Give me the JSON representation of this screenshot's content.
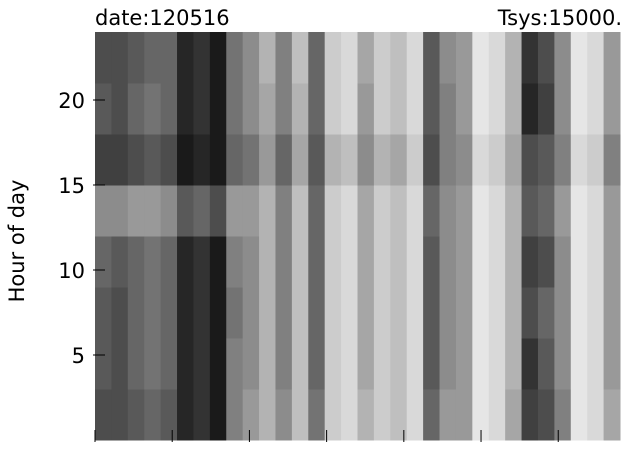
{
  "chart_data": {
    "type": "heatmap",
    "title_left": "date:120516",
    "title_right": "Tsys:15000.",
    "ylabel": "Hour of day",
    "xlim": [
      0,
      6.8
    ],
    "xticks": [
      0,
      1,
      2,
      3,
      4,
      5,
      6
    ],
    "ylim": [
      0,
      24
    ],
    "yticks": [
      5,
      10,
      15,
      20
    ],
    "z": [
      [
        0.3,
        0.3,
        0.35,
        0.4,
        0.35,
        0.15,
        0.2,
        0.1,
        0.5,
        0.6,
        0.7,
        0.55,
        0.75,
        0.45,
        0.8,
        0.85,
        0.7,
        0.8,
        0.75,
        0.85,
        0.4,
        0.6,
        0.6,
        0.9,
        0.85,
        0.65,
        0.25,
        0.3,
        0.5,
        0.9,
        0.85,
        0.65
      ],
      [
        0.35,
        0.3,
        0.4,
        0.45,
        0.4,
        0.15,
        0.2,
        0.1,
        0.5,
        0.55,
        0.7,
        0.5,
        0.75,
        0.4,
        0.8,
        0.85,
        0.65,
        0.8,
        0.75,
        0.85,
        0.35,
        0.55,
        0.6,
        0.9,
        0.85,
        0.7,
        0.2,
        0.35,
        0.55,
        0.9,
        0.85,
        0.6
      ],
      [
        0.35,
        0.3,
        0.4,
        0.45,
        0.4,
        0.15,
        0.2,
        0.1,
        0.45,
        0.55,
        0.7,
        0.5,
        0.75,
        0.4,
        0.8,
        0.85,
        0.65,
        0.8,
        0.75,
        0.85,
        0.35,
        0.55,
        0.6,
        0.9,
        0.85,
        0.7,
        0.3,
        0.4,
        0.55,
        0.9,
        0.85,
        0.6
      ],
      [
        0.4,
        0.35,
        0.4,
        0.45,
        0.4,
        0.15,
        0.2,
        0.1,
        0.5,
        0.55,
        0.7,
        0.5,
        0.75,
        0.4,
        0.8,
        0.85,
        0.65,
        0.8,
        0.75,
        0.85,
        0.35,
        0.55,
        0.6,
        0.9,
        0.85,
        0.7,
        0.25,
        0.3,
        0.55,
        0.9,
        0.85,
        0.6
      ],
      [
        0.55,
        0.55,
        0.6,
        0.6,
        0.55,
        0.35,
        0.4,
        0.3,
        0.6,
        0.6,
        0.7,
        0.5,
        0.75,
        0.4,
        0.8,
        0.85,
        0.65,
        0.8,
        0.75,
        0.85,
        0.4,
        0.55,
        0.6,
        0.9,
        0.85,
        0.7,
        0.35,
        0.4,
        0.6,
        0.9,
        0.85,
        0.6
      ],
      [
        0.25,
        0.25,
        0.3,
        0.35,
        0.3,
        0.1,
        0.15,
        0.1,
        0.4,
        0.45,
        0.6,
        0.4,
        0.65,
        0.35,
        0.7,
        0.75,
        0.55,
        0.7,
        0.65,
        0.8,
        0.3,
        0.5,
        0.55,
        0.85,
        0.8,
        0.65,
        0.3,
        0.35,
        0.5,
        0.85,
        0.8,
        0.5
      ],
      [
        0.35,
        0.3,
        0.4,
        0.45,
        0.4,
        0.15,
        0.2,
        0.1,
        0.45,
        0.55,
        0.65,
        0.5,
        0.7,
        0.4,
        0.8,
        0.85,
        0.6,
        0.8,
        0.75,
        0.85,
        0.35,
        0.5,
        0.6,
        0.9,
        0.85,
        0.7,
        0.15,
        0.25,
        0.55,
        0.9,
        0.85,
        0.6
      ],
      [
        0.3,
        0.3,
        0.35,
        0.4,
        0.4,
        0.15,
        0.2,
        0.1,
        0.45,
        0.55,
        0.7,
        0.5,
        0.75,
        0.4,
        0.8,
        0.85,
        0.65,
        0.8,
        0.75,
        0.85,
        0.35,
        0.55,
        0.6,
        0.9,
        0.85,
        0.7,
        0.2,
        0.3,
        0.55,
        0.9,
        0.85,
        0.6
      ]
    ]
  }
}
